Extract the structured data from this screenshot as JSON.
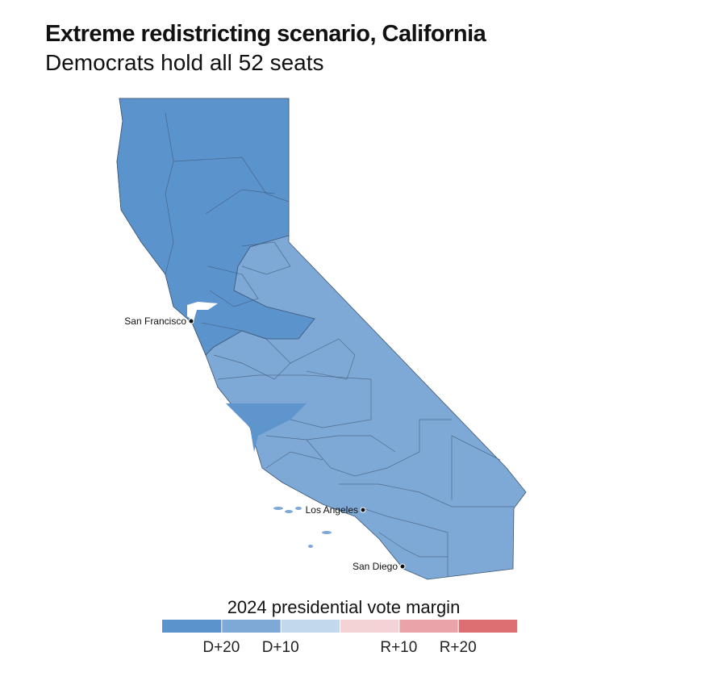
{
  "header": {
    "title": "Extreme redistricting scenario, California",
    "subtitle": "Democrats hold all 52 seats"
  },
  "map": {
    "cities": [
      {
        "label": "San Francisco"
      },
      {
        "label": "Los Angeles"
      },
      {
        "label": "San Diego"
      }
    ]
  },
  "legend": {
    "title": "2024 presidential vote margin",
    "colors": [
      "#5b93cc",
      "#7ea8d6",
      "#c2d8ec",
      "#f4d3d6",
      "#eaa3a8",
      "#dd6f73"
    ],
    "labels": [
      "D+20",
      "D+10",
      null,
      "R+10",
      "R+20"
    ]
  }
}
